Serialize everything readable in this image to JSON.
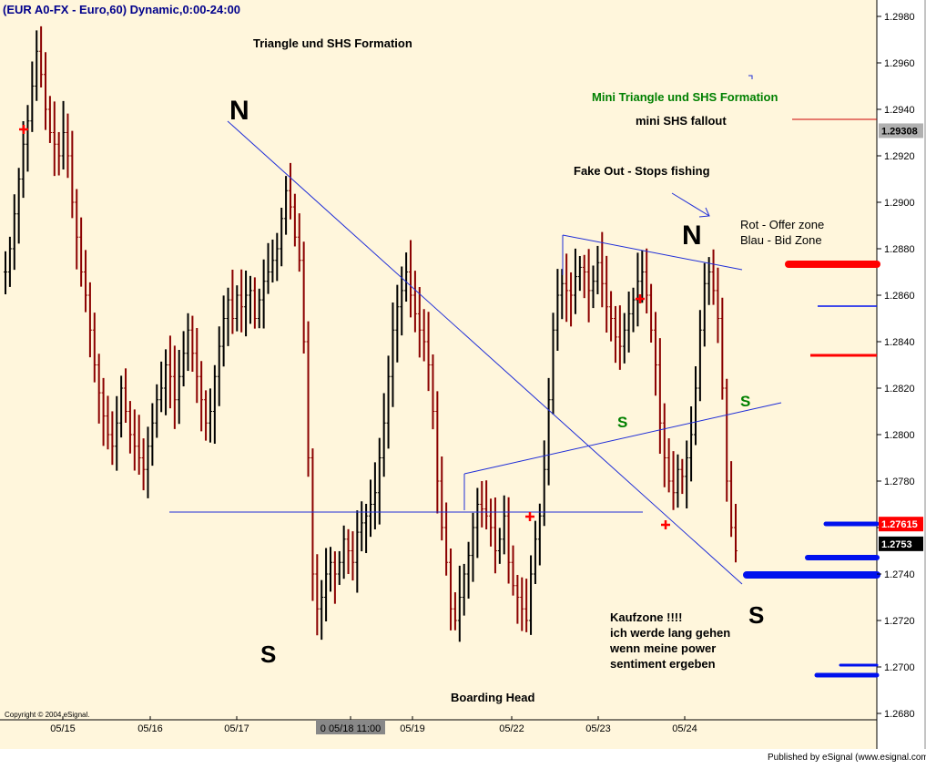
{
  "window": {
    "title": "(EUR A0-FX - Euro,60) Dynamic,0:00-24:00",
    "copyright": "Copyright © 2004 eSignal.",
    "publisher": "Published by eSignal (www.esignal.com)"
  },
  "colors": {
    "background": "#fff6dc",
    "up_bar": "#000000",
    "down_bar": "#8b0000",
    "annotation_blue": "#1f2ed8",
    "offer_red": "#ff0000",
    "bid_blue": "#0011ee",
    "green_text": "#008000"
  },
  "chart_data": {
    "type": "ohlc-bar",
    "symbol": "EUR A0-FX",
    "interval": "60",
    "y_axis": {
      "min": 1.268,
      "max": 1.298,
      "ticks": [
        "1.2980",
        "1.2960",
        "1.2940",
        "1.2920",
        "1.2900",
        "1.2880",
        "1.2860",
        "1.2840",
        "1.2820",
        "1.2800",
        "1.2780",
        "1.2760",
        "1.2740",
        "1.2720",
        "1.2700",
        "1.2680"
      ]
    },
    "price_labels": [
      {
        "value": "1.29308",
        "style": "gray"
      },
      {
        "value": "1.27615",
        "style": "red"
      },
      {
        "value": "1.2753",
        "style": "black"
      }
    ],
    "x_labels": [
      "05/15",
      "05/16",
      "05/17",
      "0 05/18 11:00",
      "05/19",
      "05/22",
      "05/23",
      "05/24"
    ],
    "cursor_label_index": 3,
    "approx_bar_path_hourly": [
      1.287,
      1.288,
      1.2895,
      1.291,
      1.2925,
      1.2935,
      1.295,
      1.2965,
      1.2955,
      1.294,
      1.293,
      1.2925,
      1.292,
      1.293,
      1.292,
      1.29,
      1.2885,
      1.287,
      1.286,
      1.2845,
      1.283,
      1.2818,
      1.2808,
      1.28,
      1.2795,
      1.2805,
      1.282,
      1.281,
      1.28,
      1.2795,
      1.279,
      1.2785,
      1.2795,
      1.2805,
      1.2815,
      1.282,
      1.283,
      1.2825,
      1.2815,
      1.2825,
      1.2835,
      1.2845,
      1.2835,
      1.2825,
      1.2815,
      1.2805,
      1.281,
      1.2825,
      1.2838,
      1.285,
      1.2858,
      1.285,
      1.286,
      1.2855,
      1.286,
      1.2862,
      1.285,
      1.2858,
      1.2866,
      1.287,
      1.2875,
      1.288,
      1.2893,
      1.2905,
      1.2898,
      1.2885,
      1.2875,
      1.284,
      1.279,
      1.274,
      1.2725,
      1.273,
      1.274,
      1.2745,
      1.274,
      1.2745,
      1.2755,
      1.275,
      1.2745,
      1.2758,
      1.2762,
      1.2765,
      1.277,
      1.2775,
      1.279,
      1.2805,
      1.2825,
      1.2845,
      1.2855,
      1.2862,
      1.287,
      1.286,
      1.2852,
      1.2845,
      1.284,
      1.283,
      1.281,
      1.278,
      1.276,
      1.2745,
      1.2725,
      1.272,
      1.273,
      1.274,
      1.2748,
      1.276,
      1.277,
      1.2768,
      1.2765,
      1.276,
      1.275,
      1.2755,
      1.2765,
      1.2745,
      1.2735,
      1.273,
      1.2725,
      1.272,
      1.274,
      1.2755,
      1.2765,
      1.2785,
      1.2815,
      1.2845,
      1.286,
      1.2865,
      1.2862,
      1.286,
      1.2868,
      1.2872,
      1.287,
      1.2862,
      1.2866,
      1.2874,
      1.2865,
      1.2855,
      1.285,
      1.2842,
      1.2838,
      1.2845,
      1.2852,
      1.2858,
      1.2866,
      1.287,
      1.286,
      1.2845,
      1.283,
      1.2805,
      1.279,
      1.278,
      1.2775,
      1.2785,
      1.2782,
      1.279,
      1.28,
      1.282,
      1.2845,
      1.2865,
      1.287,
      1.2862,
      1.285,
      1.282,
      1.278,
      1.276,
      1.275
    ]
  },
  "annotations": {
    "title_main": "Triangle und SHS Formation",
    "title_mini": "Mini Triangle und SHS Formation",
    "mini_fallout": "mini SHS fallout",
    "fakeout": "Fake Out - Stops fishing",
    "offer_zone": "Rot - Offer zone",
    "bid_zone": "Blau - Bid Zone",
    "n_left": "N",
    "n_right": "N",
    "s_left": "S",
    "s_right": "S",
    "s_green_left": "S",
    "s_green_right": "S",
    "boarding_head": "Boarding Head",
    "kaufzone": [
      "Kaufzone !!!!",
      "ich werde lang gehen",
      "wenn meine power",
      "sentiment ergeben"
    ]
  },
  "zones": {
    "offer": [
      1.2933,
      1.2873,
      1.2833
    ],
    "bid": [
      1.2857,
      1.2761,
      1.2746,
      1.2739,
      1.2702,
      1.2697
    ]
  }
}
